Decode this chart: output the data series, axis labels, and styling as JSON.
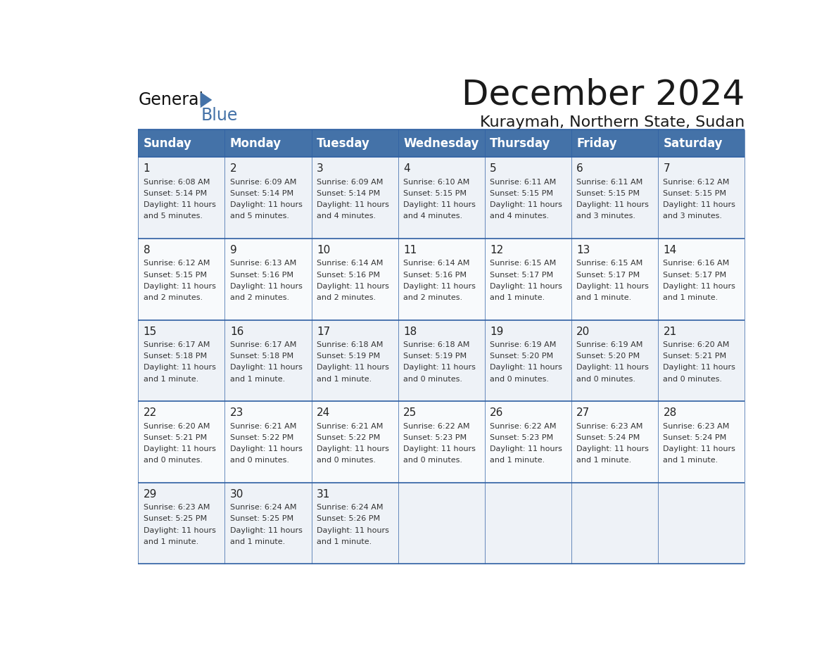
{
  "title": "December 2024",
  "subtitle": "Kuraymah, Northern State, Sudan",
  "header_bg_color": "#4472a8",
  "header_text_color": "#ffffff",
  "cell_bg_even": "#eef2f7",
  "cell_bg_odd": "#f8fafc",
  "divider_color": "#2e5fa3",
  "day_headers": [
    "Sunday",
    "Monday",
    "Tuesday",
    "Wednesday",
    "Thursday",
    "Friday",
    "Saturday"
  ],
  "weeks": [
    [
      {
        "day": 1,
        "sunrise": "6:08 AM",
        "sunset": "5:14 PM",
        "daylight": "11 hours and 5 minutes."
      },
      {
        "day": 2,
        "sunrise": "6:09 AM",
        "sunset": "5:14 PM",
        "daylight": "11 hours and 5 minutes."
      },
      {
        "day": 3,
        "sunrise": "6:09 AM",
        "sunset": "5:14 PM",
        "daylight": "11 hours and 4 minutes."
      },
      {
        "day": 4,
        "sunrise": "6:10 AM",
        "sunset": "5:15 PM",
        "daylight": "11 hours and 4 minutes."
      },
      {
        "day": 5,
        "sunrise": "6:11 AM",
        "sunset": "5:15 PM",
        "daylight": "11 hours and 4 minutes."
      },
      {
        "day": 6,
        "sunrise": "6:11 AM",
        "sunset": "5:15 PM",
        "daylight": "11 hours and 3 minutes."
      },
      {
        "day": 7,
        "sunrise": "6:12 AM",
        "sunset": "5:15 PM",
        "daylight": "11 hours and 3 minutes."
      }
    ],
    [
      {
        "day": 8,
        "sunrise": "6:12 AM",
        "sunset": "5:15 PM",
        "daylight": "11 hours and 2 minutes."
      },
      {
        "day": 9,
        "sunrise": "6:13 AM",
        "sunset": "5:16 PM",
        "daylight": "11 hours and 2 minutes."
      },
      {
        "day": 10,
        "sunrise": "6:14 AM",
        "sunset": "5:16 PM",
        "daylight": "11 hours and 2 minutes."
      },
      {
        "day": 11,
        "sunrise": "6:14 AM",
        "sunset": "5:16 PM",
        "daylight": "11 hours and 2 minutes."
      },
      {
        "day": 12,
        "sunrise": "6:15 AM",
        "sunset": "5:17 PM",
        "daylight": "11 hours and 1 minute."
      },
      {
        "day": 13,
        "sunrise": "6:15 AM",
        "sunset": "5:17 PM",
        "daylight": "11 hours and 1 minute."
      },
      {
        "day": 14,
        "sunrise": "6:16 AM",
        "sunset": "5:17 PM",
        "daylight": "11 hours and 1 minute."
      }
    ],
    [
      {
        "day": 15,
        "sunrise": "6:17 AM",
        "sunset": "5:18 PM",
        "daylight": "11 hours and 1 minute."
      },
      {
        "day": 16,
        "sunrise": "6:17 AM",
        "sunset": "5:18 PM",
        "daylight": "11 hours and 1 minute."
      },
      {
        "day": 17,
        "sunrise": "6:18 AM",
        "sunset": "5:19 PM",
        "daylight": "11 hours and 1 minute."
      },
      {
        "day": 18,
        "sunrise": "6:18 AM",
        "sunset": "5:19 PM",
        "daylight": "11 hours and 0 minutes."
      },
      {
        "day": 19,
        "sunrise": "6:19 AM",
        "sunset": "5:20 PM",
        "daylight": "11 hours and 0 minutes."
      },
      {
        "day": 20,
        "sunrise": "6:19 AM",
        "sunset": "5:20 PM",
        "daylight": "11 hours and 0 minutes."
      },
      {
        "day": 21,
        "sunrise": "6:20 AM",
        "sunset": "5:21 PM",
        "daylight": "11 hours and 0 minutes."
      }
    ],
    [
      {
        "day": 22,
        "sunrise": "6:20 AM",
        "sunset": "5:21 PM",
        "daylight": "11 hours and 0 minutes."
      },
      {
        "day": 23,
        "sunrise": "6:21 AM",
        "sunset": "5:22 PM",
        "daylight": "11 hours and 0 minutes."
      },
      {
        "day": 24,
        "sunrise": "6:21 AM",
        "sunset": "5:22 PM",
        "daylight": "11 hours and 0 minutes."
      },
      {
        "day": 25,
        "sunrise": "6:22 AM",
        "sunset": "5:23 PM",
        "daylight": "11 hours and 0 minutes."
      },
      {
        "day": 26,
        "sunrise": "6:22 AM",
        "sunset": "5:23 PM",
        "daylight": "11 hours and 1 minute."
      },
      {
        "day": 27,
        "sunrise": "6:23 AM",
        "sunset": "5:24 PM",
        "daylight": "11 hours and 1 minute."
      },
      {
        "day": 28,
        "sunrise": "6:23 AM",
        "sunset": "5:24 PM",
        "daylight": "11 hours and 1 minute."
      }
    ],
    [
      {
        "day": 29,
        "sunrise": "6:23 AM",
        "sunset": "5:25 PM",
        "daylight": "11 hours and 1 minute."
      },
      {
        "day": 30,
        "sunrise": "6:24 AM",
        "sunset": "5:25 PM",
        "daylight": "11 hours and 1 minute."
      },
      {
        "day": 31,
        "sunrise": "6:24 AM",
        "sunset": "5:26 PM",
        "daylight": "11 hours and 1 minute."
      },
      null,
      null,
      null,
      null
    ]
  ],
  "logo_text_general": "General",
  "logo_text_blue": "Blue",
  "logo_triangle_color": "#4472a8"
}
